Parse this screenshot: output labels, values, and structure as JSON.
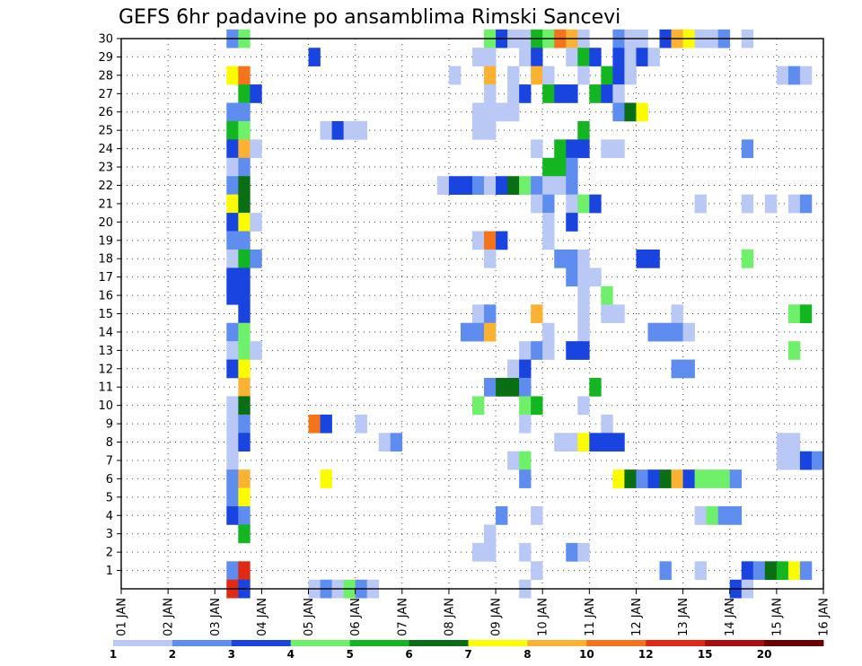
{
  "chart_data": {
    "type": "heatmap",
    "title": "GEFS 6hr padavine po ansamblima Rimski Sancevi",
    "xlabel": "",
    "ylabel": "",
    "x_tick_labels": [
      "01 JAN",
      "02 JAN",
      "03 JAN",
      "04 JAN",
      "05 JAN",
      "06 JAN",
      "07 JAN",
      "08 JAN",
      "09 JAN",
      "10 JAN",
      "11 JAN",
      "12 JAN",
      "13 JAN",
      "14 JAN",
      "15 JAN",
      "16 JAN"
    ],
    "x_range": [
      1,
      16
    ],
    "y_tick_labels": [
      "1",
      "2",
      "3",
      "4",
      "5",
      "6",
      "7",
      "8",
      "9",
      "10",
      "11",
      "12",
      "13",
      "14",
      "15",
      "16",
      "17",
      "18",
      "19",
      "20",
      "21",
      "22",
      "23",
      "24",
      "25",
      "26",
      "27",
      "28",
      "29",
      "30"
    ],
    "y_range": [
      0,
      30
    ],
    "grid": "dotted",
    "legend": {
      "placement": "bottom",
      "colors": [
        "#b9c8f5",
        "#5f8cef",
        "#1a44e0",
        "#6ff06a",
        "#13b520",
        "#0a6e14",
        "#fcfc00",
        "#fbb233",
        "#f3741a",
        "#e02a14",
        "#a80e0e",
        "#6b0000"
      ],
      "labels": [
        "1",
        "2",
        "3",
        "4",
        "5",
        "6",
        "7",
        "8",
        "10",
        "12",
        "15",
        "20"
      ]
    },
    "cells": [
      [
        3.25,
        30,
        1
      ],
      [
        3.5,
        30,
        3
      ],
      [
        8.75,
        30,
        3
      ],
      [
        9.0,
        30,
        2
      ],
      [
        9.25,
        30,
        0
      ],
      [
        9.5,
        30,
        0
      ],
      [
        9.75,
        30,
        4
      ],
      [
        10.0,
        30,
        3
      ],
      [
        10.25,
        30,
        8
      ],
      [
        10.5,
        30,
        7
      ],
      [
        10.75,
        30,
        0
      ],
      [
        11.5,
        30,
        1
      ],
      [
        11.75,
        30,
        0
      ],
      [
        12.0,
        30,
        0
      ],
      [
        12.5,
        30,
        2
      ],
      [
        12.75,
        30,
        7
      ],
      [
        13.0,
        30,
        6
      ],
      [
        13.25,
        30,
        0
      ],
      [
        13.5,
        30,
        0
      ],
      [
        13.75,
        30,
        1
      ],
      [
        14.25,
        30,
        0
      ],
      [
        5.0,
        29,
        2
      ],
      [
        8.5,
        29,
        0
      ],
      [
        8.75,
        29,
        0
      ],
      [
        9.5,
        29,
        0
      ],
      [
        9.75,
        29,
        2
      ],
      [
        10.5,
        29,
        0
      ],
      [
        10.75,
        29,
        4
      ],
      [
        11.0,
        29,
        2
      ],
      [
        11.5,
        29,
        2
      ],
      [
        11.75,
        29,
        0
      ],
      [
        12.0,
        29,
        2
      ],
      [
        12.25,
        29,
        0
      ],
      [
        3.25,
        28,
        6
      ],
      [
        3.5,
        28,
        8
      ],
      [
        8.0,
        28,
        0
      ],
      [
        8.75,
        28,
        7
      ],
      [
        9.25,
        28,
        0
      ],
      [
        9.75,
        28,
        7
      ],
      [
        10.0,
        28,
        0
      ],
      [
        10.75,
        28,
        0
      ],
      [
        11.25,
        28,
        4
      ],
      [
        11.5,
        28,
        2
      ],
      [
        11.75,
        28,
        0
      ],
      [
        15.0,
        28,
        0
      ],
      [
        15.25,
        28,
        1
      ],
      [
        15.5,
        28,
        0
      ],
      [
        3.5,
        27,
        4
      ],
      [
        3.75,
        27,
        2
      ],
      [
        8.75,
        27,
        0
      ],
      [
        9.25,
        27,
        0
      ],
      [
        9.5,
        27,
        2
      ],
      [
        10.0,
        27,
        4
      ],
      [
        10.25,
        27,
        2
      ],
      [
        10.5,
        27,
        2
      ],
      [
        11.0,
        27,
        4
      ],
      [
        11.25,
        27,
        2
      ],
      [
        11.5,
        27,
        0
      ],
      [
        3.25,
        26,
        1
      ],
      [
        3.5,
        26,
        1
      ],
      [
        8.5,
        26,
        0
      ],
      [
        8.75,
        26,
        0
      ],
      [
        9.0,
        26,
        0
      ],
      [
        9.25,
        26,
        0
      ],
      [
        11.5,
        26,
        1
      ],
      [
        11.75,
        26,
        5
      ],
      [
        12.0,
        26,
        6
      ],
      [
        3.25,
        25,
        4
      ],
      [
        3.5,
        25,
        3
      ],
      [
        5.25,
        25,
        0
      ],
      [
        5.5,
        25,
        2
      ],
      [
        5.75,
        25,
        0
      ],
      [
        6.0,
        25,
        0
      ],
      [
        8.5,
        25,
        0
      ],
      [
        8.75,
        25,
        0
      ],
      [
        10.75,
        25,
        4
      ],
      [
        3.25,
        24,
        2
      ],
      [
        3.5,
        24,
        7
      ],
      [
        3.75,
        24,
        0
      ],
      [
        9.75,
        24,
        0
      ],
      [
        10.25,
        24,
        4
      ],
      [
        10.5,
        24,
        2
      ],
      [
        10.75,
        24,
        2
      ],
      [
        11.25,
        24,
        0
      ],
      [
        11.5,
        24,
        0
      ],
      [
        14.25,
        24,
        1
      ],
      [
        3.25,
        23,
        0
      ],
      [
        3.5,
        23,
        1
      ],
      [
        10.0,
        23,
        4
      ],
      [
        10.25,
        23,
        4
      ],
      [
        10.5,
        23,
        1
      ],
      [
        3.25,
        22,
        1
      ],
      [
        3.5,
        22,
        5
      ],
      [
        7.75,
        22,
        0
      ],
      [
        8.0,
        22,
        2
      ],
      [
        8.25,
        22,
        2
      ],
      [
        8.5,
        22,
        1
      ],
      [
        8.75,
        22,
        0
      ],
      [
        9.0,
        22,
        2
      ],
      [
        9.25,
        22,
        5
      ],
      [
        9.5,
        22,
        3
      ],
      [
        9.75,
        22,
        1
      ],
      [
        10.0,
        22,
        0
      ],
      [
        10.25,
        22,
        0
      ],
      [
        10.5,
        22,
        1
      ],
      [
        3.25,
        21,
        6
      ],
      [
        3.5,
        21,
        5
      ],
      [
        9.75,
        21,
        0
      ],
      [
        10.0,
        21,
        1
      ],
      [
        10.5,
        21,
        0
      ],
      [
        10.75,
        21,
        3
      ],
      [
        11.0,
        21,
        2
      ],
      [
        13.25,
        21,
        0
      ],
      [
        14.25,
        21,
        0
      ],
      [
        14.75,
        21,
        0
      ],
      [
        15.25,
        21,
        0
      ],
      [
        15.5,
        21,
        1
      ],
      [
        3.25,
        20,
        2
      ],
      [
        3.5,
        20,
        6
      ],
      [
        3.75,
        20,
        0
      ],
      [
        10.0,
        20,
        0
      ],
      [
        10.5,
        20,
        2
      ],
      [
        3.25,
        19,
        1
      ],
      [
        3.5,
        19,
        1
      ],
      [
        8.5,
        19,
        0
      ],
      [
        8.75,
        19,
        8
      ],
      [
        9.0,
        19,
        2
      ],
      [
        10.0,
        19,
        0
      ],
      [
        3.25,
        18,
        0
      ],
      [
        3.5,
        18,
        4
      ],
      [
        3.75,
        18,
        1
      ],
      [
        8.75,
        18,
        0
      ],
      [
        10.25,
        18,
        1
      ],
      [
        10.5,
        18,
        1
      ],
      [
        10.75,
        18,
        0
      ],
      [
        12.0,
        18,
        2
      ],
      [
        12.25,
        18,
        2
      ],
      [
        14.25,
        18,
        3
      ],
      [
        3.25,
        17,
        2
      ],
      [
        3.5,
        17,
        2
      ],
      [
        10.5,
        17,
        1
      ],
      [
        10.75,
        17,
        0
      ],
      [
        11.0,
        17,
        0
      ],
      [
        3.25,
        16,
        2
      ],
      [
        3.5,
        16,
        2
      ],
      [
        10.75,
        16,
        0
      ],
      [
        11.25,
        16,
        3
      ],
      [
        3.5,
        15,
        2
      ],
      [
        8.5,
        15,
        0
      ],
      [
        8.75,
        15,
        1
      ],
      [
        9.75,
        15,
        7
      ],
      [
        10.75,
        15,
        0
      ],
      [
        11.25,
        15,
        0
      ],
      [
        11.5,
        15,
        0
      ],
      [
        12.75,
        15,
        0
      ],
      [
        15.25,
        15,
        3
      ],
      [
        15.5,
        15,
        4
      ],
      [
        3.25,
        14,
        1
      ],
      [
        3.5,
        14,
        3
      ],
      [
        8.25,
        14,
        1
      ],
      [
        8.5,
        14,
        1
      ],
      [
        8.75,
        14,
        7
      ],
      [
        10.0,
        14,
        0
      ],
      [
        10.75,
        14,
        0
      ],
      [
        12.25,
        14,
        1
      ],
      [
        12.5,
        14,
        1
      ],
      [
        12.75,
        14,
        1
      ],
      [
        13.0,
        14,
        0
      ],
      [
        3.25,
        13,
        0
      ],
      [
        3.5,
        13,
        3
      ],
      [
        3.75,
        13,
        0
      ],
      [
        9.5,
        13,
        0
      ],
      [
        9.75,
        13,
        1
      ],
      [
        10.0,
        13,
        0
      ],
      [
        10.5,
        13,
        2
      ],
      [
        10.75,
        13,
        2
      ],
      [
        15.25,
        13,
        3
      ],
      [
        3.25,
        12,
        2
      ],
      [
        3.5,
        12,
        6
      ],
      [
        9.25,
        12,
        0
      ],
      [
        9.5,
        12,
        2
      ],
      [
        12.75,
        12,
        1
      ],
      [
        13.0,
        12,
        1
      ],
      [
        3.5,
        11,
        7
      ],
      [
        8.75,
        11,
        1
      ],
      [
        9.0,
        11,
        5
      ],
      [
        9.25,
        11,
        5
      ],
      [
        9.5,
        11,
        1
      ],
      [
        11.0,
        11,
        4
      ],
      [
        3.25,
        10,
        0
      ],
      [
        3.5,
        10,
        5
      ],
      [
        8.5,
        10,
        3
      ],
      [
        9.5,
        10,
        3
      ],
      [
        9.75,
        10,
        4
      ],
      [
        10.75,
        10,
        0
      ],
      [
        3.25,
        9,
        0
      ],
      [
        3.5,
        9,
        1
      ],
      [
        5.0,
        9,
        8
      ],
      [
        5.25,
        9,
        2
      ],
      [
        6.0,
        9,
        0
      ],
      [
        9.5,
        9,
        0
      ],
      [
        11.25,
        9,
        0
      ],
      [
        3.25,
        8,
        0
      ],
      [
        3.5,
        8,
        2
      ],
      [
        6.5,
        8,
        0
      ],
      [
        6.75,
        8,
        1
      ],
      [
        10.25,
        8,
        0
      ],
      [
        10.5,
        8,
        0
      ],
      [
        10.75,
        8,
        6
      ],
      [
        11.0,
        8,
        2
      ],
      [
        11.25,
        8,
        2
      ],
      [
        11.5,
        8,
        2
      ],
      [
        15.0,
        8,
        0
      ],
      [
        15.25,
        8,
        0
      ],
      [
        3.25,
        7,
        0
      ],
      [
        9.25,
        7,
        0
      ],
      [
        9.5,
        7,
        3
      ],
      [
        15.0,
        7,
        0
      ],
      [
        15.25,
        7,
        0
      ],
      [
        15.5,
        7,
        2
      ],
      [
        15.75,
        7,
        1
      ],
      [
        3.25,
        6,
        1
      ],
      [
        3.5,
        6,
        7
      ],
      [
        5.25,
        6,
        6
      ],
      [
        9.5,
        6,
        1
      ],
      [
        11.5,
        6,
        6
      ],
      [
        11.75,
        6,
        5
      ],
      [
        12.0,
        6,
        1
      ],
      [
        12.25,
        6,
        2
      ],
      [
        12.5,
        6,
        5
      ],
      [
        12.75,
        6,
        7
      ],
      [
        13.0,
        6,
        2
      ],
      [
        13.25,
        6,
        3
      ],
      [
        13.5,
        6,
        3
      ],
      [
        13.75,
        6,
        3
      ],
      [
        14.0,
        6,
        1
      ],
      [
        3.25,
        5,
        1
      ],
      [
        3.5,
        5,
        6
      ],
      [
        3.25,
        4,
        2
      ],
      [
        3.5,
        4,
        1
      ],
      [
        9.0,
        4,
        1
      ],
      [
        9.75,
        4,
        0
      ],
      [
        13.25,
        4,
        0
      ],
      [
        13.5,
        4,
        3
      ],
      [
        13.75,
        4,
        1
      ],
      [
        14.0,
        4,
        1
      ],
      [
        3.5,
        3,
        4
      ],
      [
        8.75,
        3,
        0
      ],
      [
        8.5,
        2,
        0
      ],
      [
        8.75,
        2,
        0
      ],
      [
        9.5,
        2,
        0
      ],
      [
        10.5,
        2,
        1
      ],
      [
        10.75,
        2,
        0
      ],
      [
        3.25,
        1,
        1
      ],
      [
        3.5,
        1,
        9
      ],
      [
        9.75,
        1,
        0
      ],
      [
        12.5,
        1,
        1
      ],
      [
        13.25,
        1,
        0
      ],
      [
        14.25,
        1,
        2
      ],
      [
        14.5,
        1,
        1
      ],
      [
        14.75,
        1,
        5
      ],
      [
        15.0,
        1,
        4
      ],
      [
        15.25,
        1,
        6
      ],
      [
        15.5,
        1,
        1
      ],
      [
        3.25,
        0,
        9
      ],
      [
        3.5,
        0,
        2
      ],
      [
        5.0,
        0,
        0
      ],
      [
        5.25,
        0,
        1
      ],
      [
        5.5,
        0,
        0
      ],
      [
        5.75,
        0,
        3
      ],
      [
        6.0,
        0,
        1
      ],
      [
        6.25,
        0,
        0
      ],
      [
        9.5,
        0,
        0
      ],
      [
        14.0,
        0,
        2
      ],
      [
        14.25,
        0,
        0
      ]
    ]
  }
}
